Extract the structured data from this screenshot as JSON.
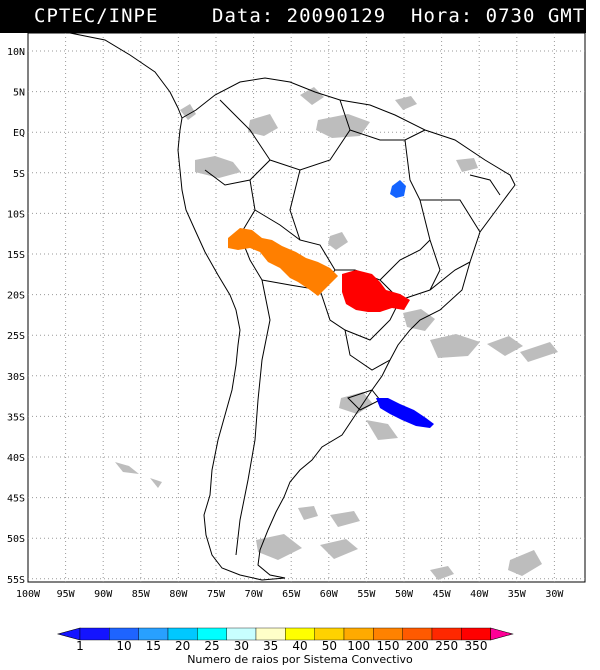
{
  "header": {
    "source": "CPTEC/INPE",
    "date_time": "Data: 20090129  Hora: 0730 GMT"
  },
  "map": {
    "lat_labels": [
      "10N",
      "5N",
      "EQ",
      "5S",
      "10S",
      "15S",
      "20S",
      "25S",
      "30S",
      "35S",
      "40S",
      "45S",
      "50S",
      "55S"
    ],
    "lon_labels": [
      "100W",
      "95W",
      "90W",
      "85W",
      "80W",
      "75W",
      "70W",
      "65W",
      "60W",
      "55W",
      "50W",
      "45W",
      "40W",
      "35W",
      "30W"
    ],
    "colors": {
      "background": "#ffffff",
      "land_outline": "#000000",
      "cloud_gray": "#bdbdbd",
      "grid": "#9a9a9a"
    },
    "systems": [
      {
        "name": "systems-amazon-orange",
        "color": "#ff7f00"
      },
      {
        "name": "systems-central-red",
        "color": "#ff0000"
      },
      {
        "name": "systems-southeast-blue",
        "color": "#0000ff"
      },
      {
        "name": "systems-north-blue",
        "color": "#1464ff"
      }
    ]
  },
  "colorbar": {
    "ticks": [
      "1",
      "10",
      "15",
      "20",
      "25",
      "30",
      "35",
      "40",
      "50",
      "100",
      "150",
      "200",
      "250",
      "350"
    ],
    "colors": [
      "#1414ff",
      "#1e64ff",
      "#28a0ff",
      "#00c8ff",
      "#00ffff",
      "#c8ffff",
      "#ffffc8",
      "#ffff00",
      "#ffd200",
      "#ffaa00",
      "#ff8200",
      "#ff5a00",
      "#ff2800",
      "#ff0000",
      "#ff0096"
    ],
    "caption": "Numero de raios por Sistema Convectivo"
  }
}
